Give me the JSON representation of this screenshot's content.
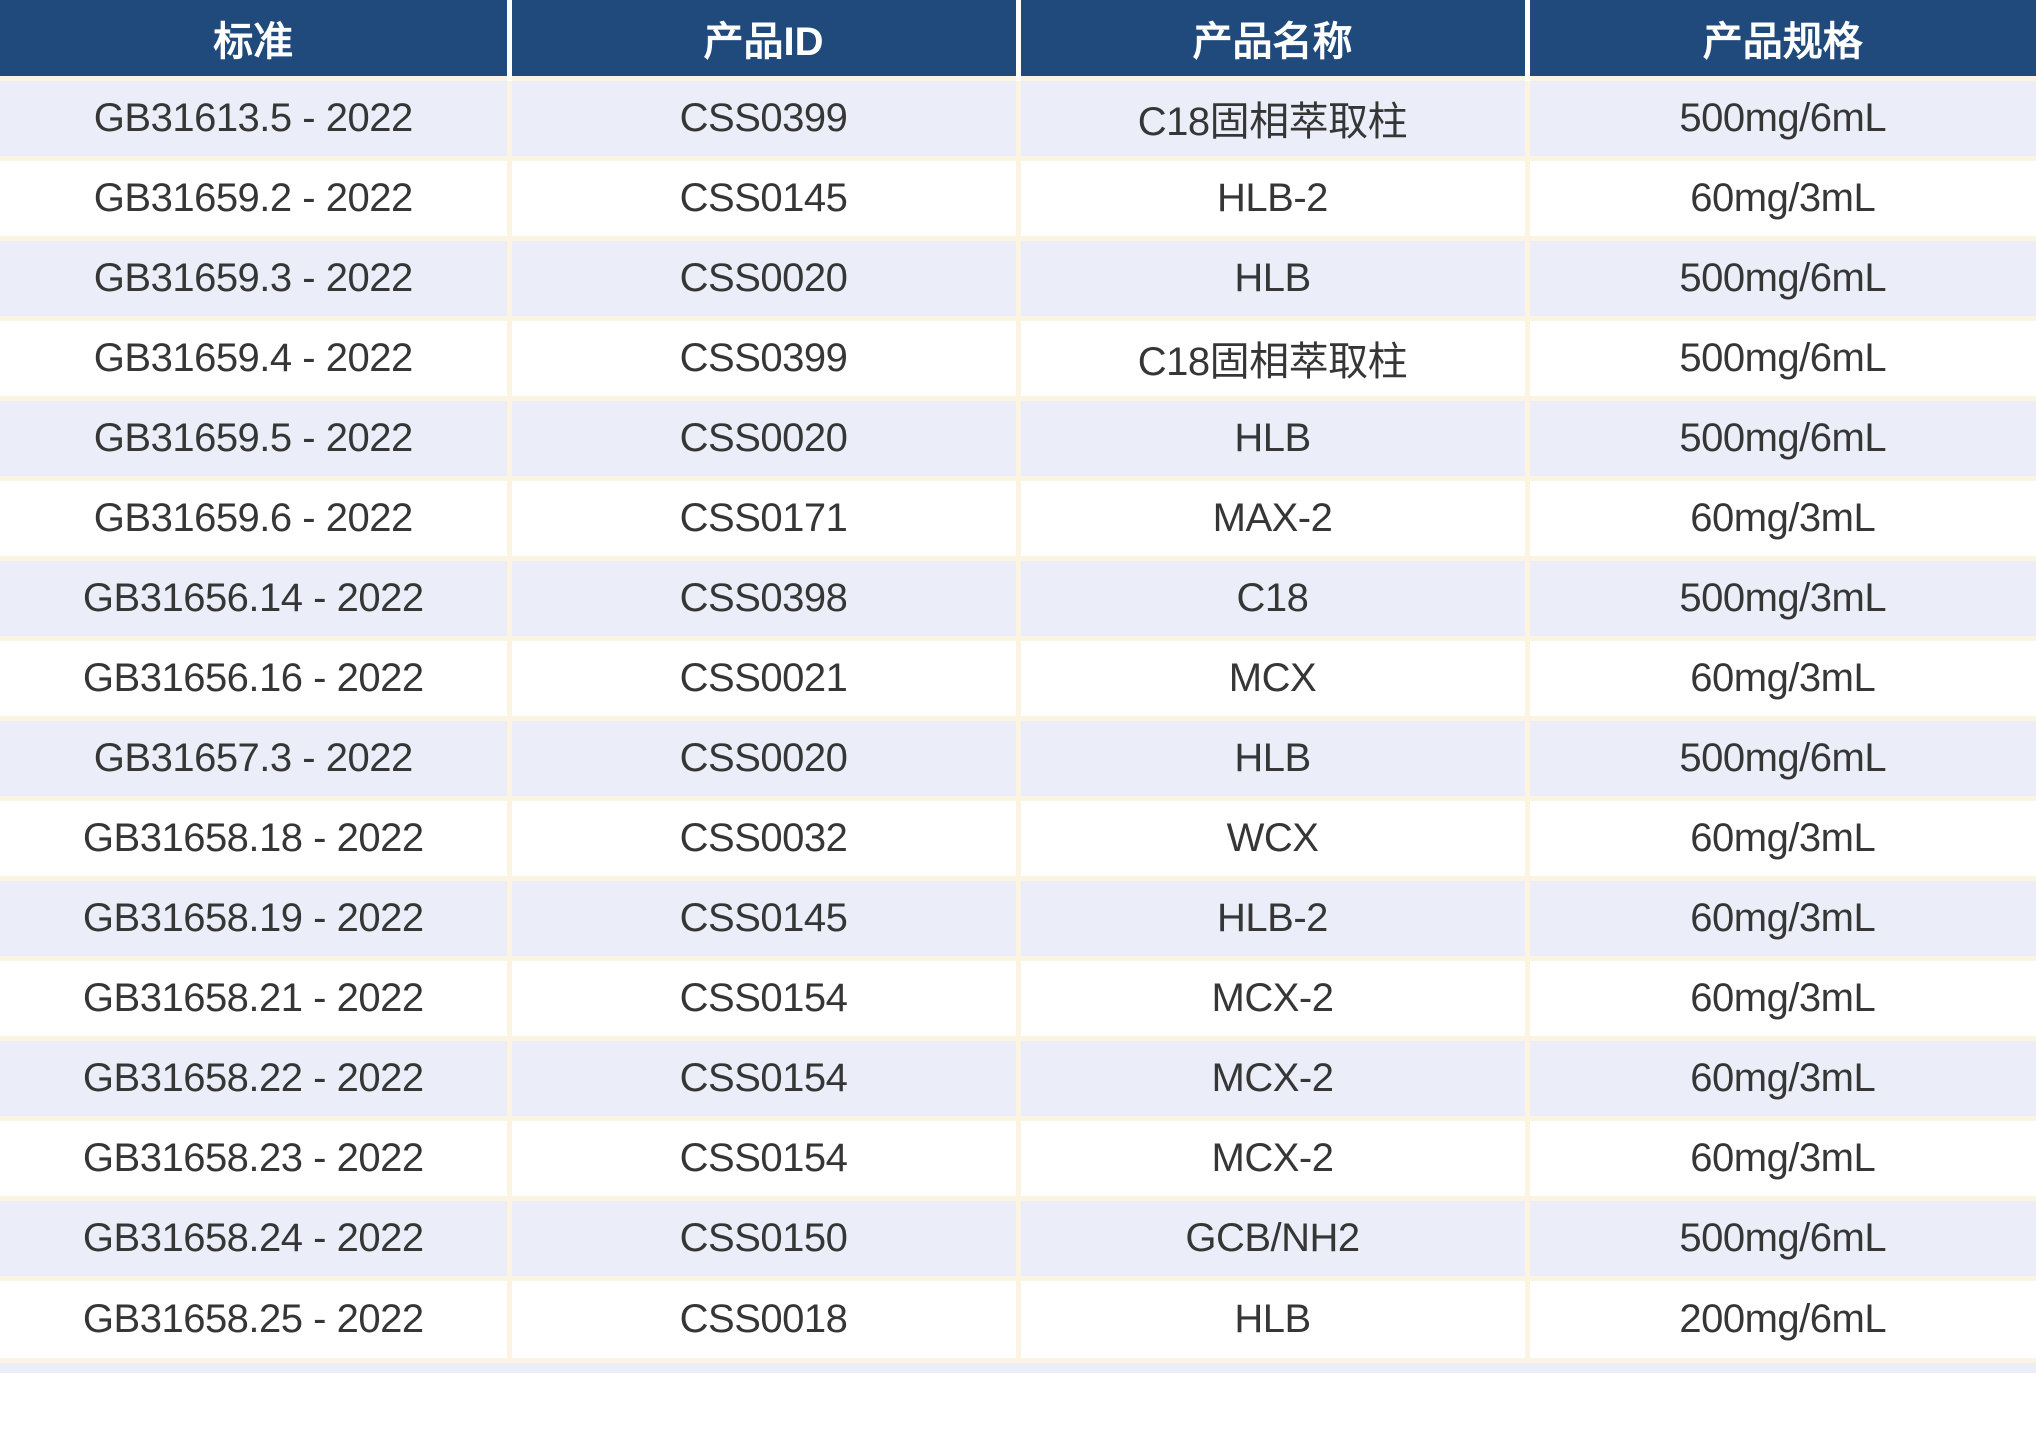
{
  "table": {
    "columns": [
      "标准",
      "产品ID",
      "产品名称",
      "产品规格"
    ],
    "rows": [
      [
        "GB31613.5 - 2022",
        "CSS0399",
        "C18固相萃取柱",
        "500mg/6mL"
      ],
      [
        "GB31659.2 - 2022",
        "CSS0145",
        "HLB-2",
        "60mg/3mL"
      ],
      [
        "GB31659.3 - 2022",
        "CSS0020",
        "HLB",
        "500mg/6mL"
      ],
      [
        "GB31659.4 - 2022",
        "CSS0399",
        "C18固相萃取柱",
        "500mg/6mL"
      ],
      [
        "GB31659.5 - 2022",
        "CSS0020",
        "HLB",
        "500mg/6mL"
      ],
      [
        "GB31659.6 - 2022",
        "CSS0171",
        "MAX-2",
        "60mg/3mL"
      ],
      [
        "GB31656.14 - 2022",
        "CSS0398",
        "C18",
        "500mg/3mL"
      ],
      [
        "GB31656.16 - 2022",
        "CSS0021",
        "MCX",
        "60mg/3mL"
      ],
      [
        "GB31657.3 - 2022",
        "CSS0020",
        "HLB",
        "500mg/6mL"
      ],
      [
        "GB31658.18 - 2022",
        "CSS0032",
        "WCX",
        "60mg/3mL"
      ],
      [
        "GB31658.19 - 2022",
        "CSS0145",
        "HLB-2",
        "60mg/3mL"
      ],
      [
        "GB31658.21 - 2022",
        "CSS0154",
        "MCX-2",
        "60mg/3mL"
      ],
      [
        "GB31658.22 - 2022",
        "CSS0154",
        "MCX-2",
        "60mg/3mL"
      ],
      [
        "GB31658.23 - 2022",
        "CSS0154",
        "MCX-2",
        "60mg/3mL"
      ],
      [
        "GB31658.24 - 2022",
        "CSS0150",
        "GCB/NH2",
        "500mg/6mL"
      ],
      [
        "GB31658.25 - 2022",
        "CSS0018",
        "HLB",
        "200mg/6mL"
      ]
    ],
    "colors": {
      "header_bg": "#1F4A7B",
      "header_text": "#FFFFFF",
      "row_bg": "#FFFFFF",
      "row_alt_bg": "#EBEEF8",
      "grid_line": "#FCF4E3",
      "body_text": "#363636"
    }
  }
}
